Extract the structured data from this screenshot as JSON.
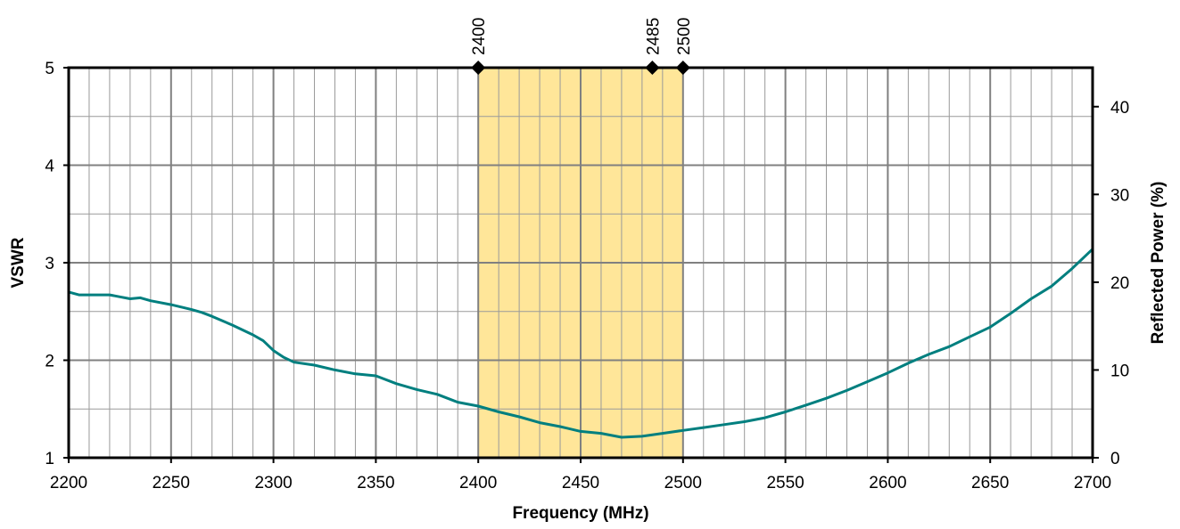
{
  "chart_data": {
    "type": "line",
    "xlabel": "Frequency (MHz)",
    "ylabel": "VSWR",
    "y2label": "Reflected Power (%)",
    "xlim": [
      2200,
      2700
    ],
    "ylim": [
      1,
      5
    ],
    "y2lim": [
      0,
      44.44
    ],
    "x_ticks": [
      2200,
      2250,
      2300,
      2350,
      2400,
      2450,
      2500,
      2550,
      2600,
      2650,
      2700
    ],
    "x_minor_step": 10,
    "y_ticks": [
      1,
      2,
      3,
      4,
      5
    ],
    "y_minor_step": 0.5,
    "y2_ticks": [
      0,
      10,
      20,
      30,
      40
    ],
    "grid": true,
    "band": {
      "from": 2400,
      "to": 2500,
      "color": "#FFE699"
    },
    "markers": [
      {
        "x": 2400,
        "label": "2400"
      },
      {
        "x": 2485,
        "label": "2485"
      },
      {
        "x": 2500,
        "label": "2500"
      }
    ],
    "series": [
      {
        "color": "#007F7F",
        "x": [
          2200,
          2205,
          2210,
          2220,
          2225,
          2230,
          2235,
          2240,
          2250,
          2260,
          2265,
          2270,
          2280,
          2290,
          2295,
          2300,
          2305,
          2310,
          2320,
          2330,
          2340,
          2350,
          2360,
          2370,
          2380,
          2390,
          2400,
          2410,
          2420,
          2430,
          2440,
          2450,
          2460,
          2470,
          2480,
          2490,
          2500,
          2510,
          2520,
          2530,
          2540,
          2550,
          2560,
          2570,
          2580,
          2590,
          2600,
          2610,
          2620,
          2630,
          2640,
          2650,
          2660,
          2670,
          2680,
          2690,
          2700
        ],
        "values": [
          2.7,
          2.67,
          2.67,
          2.67,
          2.65,
          2.63,
          2.64,
          2.61,
          2.57,
          2.52,
          2.49,
          2.45,
          2.36,
          2.26,
          2.2,
          2.1,
          2.03,
          1.98,
          1.95,
          1.9,
          1.86,
          1.84,
          1.76,
          1.7,
          1.65,
          1.57,
          1.53,
          1.47,
          1.42,
          1.36,
          1.32,
          1.27,
          1.25,
          1.21,
          1.22,
          1.25,
          1.28,
          1.31,
          1.34,
          1.37,
          1.41,
          1.47,
          1.54,
          1.61,
          1.69,
          1.78,
          1.87,
          1.97,
          2.06,
          2.14,
          2.24,
          2.34,
          2.48,
          2.63,
          2.76,
          2.94,
          3.14
        ]
      }
    ]
  }
}
